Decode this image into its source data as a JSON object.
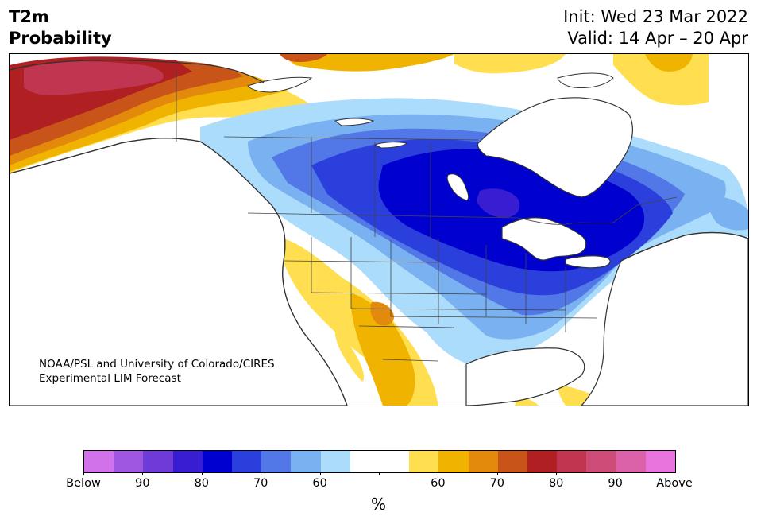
{
  "title": {
    "line1": "T2m",
    "line2": "Probability"
  },
  "subtitle": {
    "init": "Init: Wed 23 Mar 2022",
    "valid": "Valid: 14 Apr – 20 Apr"
  },
  "credit": {
    "line1": "NOAA/PSL and University of Colorado/CIRES",
    "line2": "Experimental LIM Forecast"
  },
  "legend": {
    "colors": [
      "#d272ea",
      "#9f56e0",
      "#6e3ad8",
      "#381ed0",
      "#0000cf",
      "#2a3fdc",
      "#5277e6",
      "#7ab1f0",
      "#abdcfb",
      "#ffffff",
      "#ffffff",
      "#ffdf4f",
      "#f0b400",
      "#e38a0d",
      "#c85419",
      "#b01f22",
      "#c0354f",
      "#cd4d78",
      "#db62a9",
      "#e875dd"
    ],
    "labels": [
      "Below",
      "90",
      "80",
      "70",
      "60",
      "60",
      "70",
      "80",
      "90",
      "Above"
    ],
    "unit": "%"
  },
  "map": {
    "cold_color_scale": [
      "#abdcfb",
      "#7ab1f0",
      "#5277e6",
      "#2a3fdc",
      "#0000cf",
      "#381ed0"
    ],
    "warm_color_scale": [
      "#ffdf4f",
      "#f0b400",
      "#e38a0d",
      "#c85419",
      "#b01f22",
      "#c0354f"
    ]
  }
}
